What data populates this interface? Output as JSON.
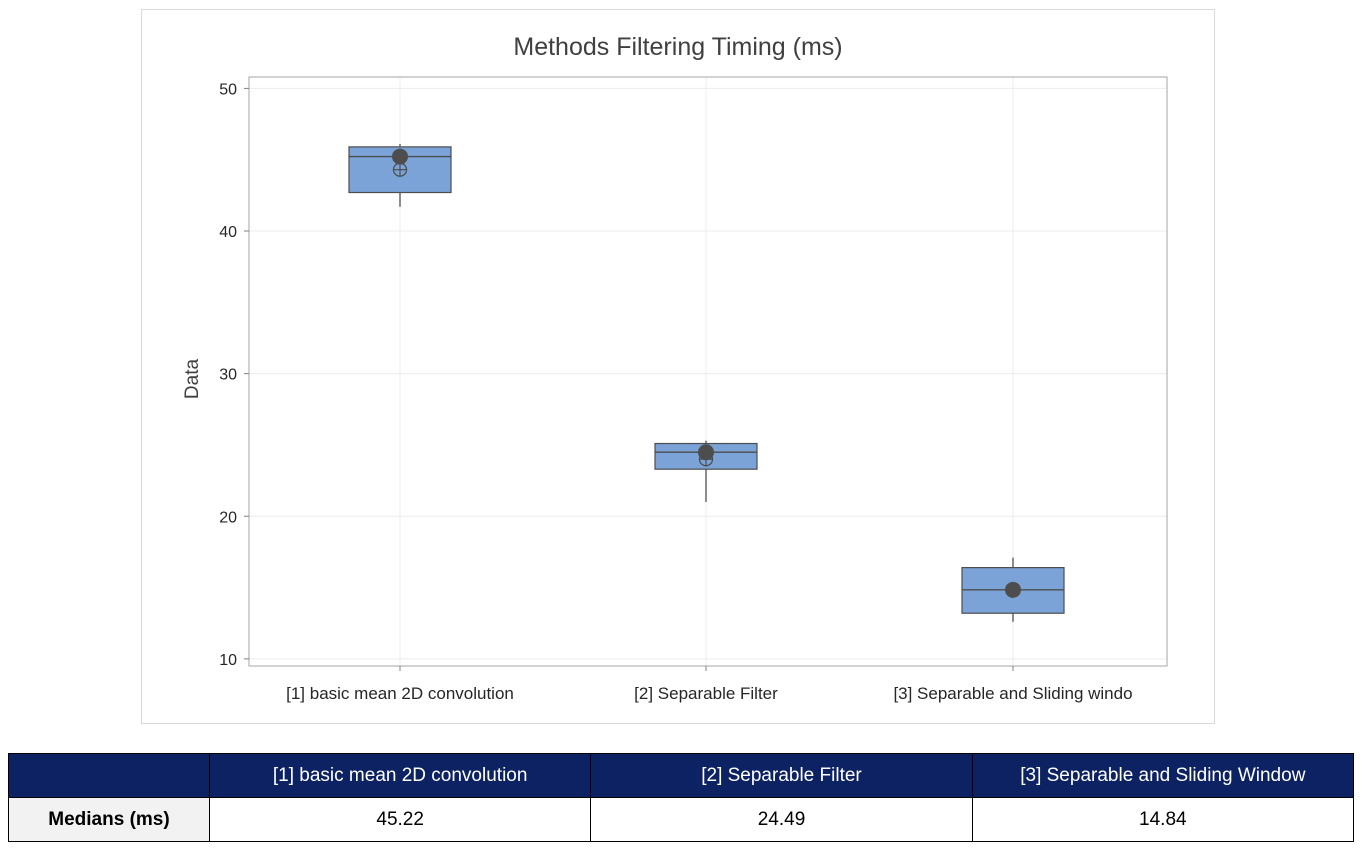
{
  "chart_data": {
    "type": "boxplot",
    "title": "Methods Filtering Timing (ms)",
    "ylabel": "Data",
    "xlabel": "",
    "ylim": [
      9.5,
      50.8
    ],
    "yticks": [
      10,
      20,
      30,
      40,
      50
    ],
    "grid": true,
    "box_color": "#7ba3d8",
    "box_stroke": "#4d4d4d",
    "marker_color": "#4d4d4d",
    "categories": [
      "[1] basic mean 2D convolution",
      "[2] Separable Filter",
      "[3] Separable and Sliding windo"
    ],
    "boxes": [
      {
        "whisker_low": 41.7,
        "q1": 42.7,
        "median": 45.22,
        "q3": 45.9,
        "whisker_high": 46.1,
        "mean": 44.3
      },
      {
        "whisker_low": 21.0,
        "q1": 23.3,
        "median": 24.49,
        "q3": 25.1,
        "whisker_high": 25.3,
        "mean": 24.0
      },
      {
        "whisker_low": 12.6,
        "q1": 13.2,
        "median": 14.84,
        "q3": 16.4,
        "whisker_high": 17.1,
        "mean": 14.8
      }
    ]
  },
  "table": {
    "header_blank": "",
    "headers": [
      "[1] basic mean 2D convolution",
      "[2] Separable Filter",
      "[3] Separable and Sliding Window"
    ],
    "row_label": "Medians (ms)",
    "values": [
      "45.22",
      "24.49",
      "14.84"
    ],
    "header_bg": "#0d2262"
  }
}
